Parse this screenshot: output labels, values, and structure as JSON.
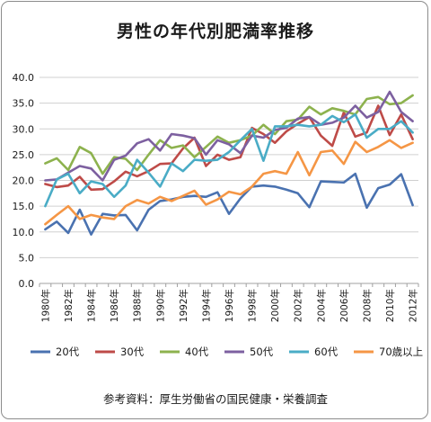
{
  "chart_data": {
    "type": "line",
    "title": "男性の年代別肥満率推移",
    "source_note": "参考資料：厚生労働省の国民健康・栄養調査",
    "xlabel": "",
    "ylabel": "",
    "ylim": [
      0,
      40
    ],
    "y_ticks": [
      "0.0",
      "5.0",
      "10.0",
      "15.0",
      "20.0",
      "25.0",
      "30.0",
      "35.0",
      "40.0"
    ],
    "x": [
      1980,
      1981,
      1982,
      1983,
      1984,
      1985,
      1986,
      1987,
      1988,
      1989,
      1990,
      1991,
      1992,
      1993,
      1994,
      1995,
      1996,
      1997,
      1998,
      1999,
      2000,
      2001,
      2002,
      2003,
      2004,
      2005,
      2006,
      2007,
      2008,
      2009,
      2010,
      2011,
      2012
    ],
    "x_tick_labels": [
      "1980年",
      "1982年",
      "1984年",
      "1986年",
      "1988年",
      "1990年",
      "1992年",
      "1994年",
      "1996年",
      "1998年",
      "2000年",
      "2002年",
      "2004年",
      "2006年",
      "2008年",
      "2010年",
      "2012年"
    ],
    "grid": true,
    "legend_position": "bottom",
    "series": [
      {
        "name": "20代",
        "color": "#4a72b0",
        "values": [
          10.5,
          12.0,
          9.8,
          14.3,
          9.5,
          13.5,
          13.2,
          13.3,
          10.3,
          14.3,
          16.0,
          16.3,
          16.8,
          17.0,
          16.8,
          17.7,
          13.5,
          16.5,
          18.8,
          19.0,
          18.8,
          18.2,
          17.5,
          14.8,
          19.8,
          19.7,
          19.6,
          21.3,
          14.7,
          18.5,
          19.2,
          21.2,
          15.2
        ]
      },
      {
        "name": "30代",
        "color": "#be4b48",
        "values": [
          19.3,
          18.7,
          19.0,
          20.7,
          18.2,
          18.3,
          19.8,
          21.7,
          20.8,
          21.8,
          23.2,
          23.3,
          26.2,
          28.3,
          22.8,
          25.0,
          24.0,
          24.5,
          30.2,
          29.0,
          27.3,
          29.5,
          31.0,
          32.3,
          28.7,
          26.7,
          33.2,
          28.5,
          29.3,
          34.5,
          28.8,
          32.8,
          28.0
        ]
      },
      {
        "name": "40代",
        "color": "#8db24e",
        "values": [
          23.3,
          24.3,
          22.0,
          26.5,
          25.3,
          21.3,
          24.5,
          24.2,
          22.0,
          25.0,
          27.8,
          26.3,
          26.8,
          24.5,
          26.5,
          28.5,
          27.3,
          27.8,
          28.7,
          30.8,
          29.0,
          31.5,
          31.8,
          34.3,
          32.8,
          34.0,
          33.5,
          32.8,
          35.8,
          36.2,
          34.8,
          35.0,
          36.5
        ]
      },
      {
        "name": "50代",
        "color": "#7d60a0",
        "values": [
          20.0,
          20.2,
          21.5,
          22.8,
          22.3,
          20.0,
          24.0,
          24.8,
          27.2,
          28.0,
          25.8,
          29.0,
          28.7,
          28.2,
          25.0,
          27.8,
          27.0,
          25.3,
          28.7,
          28.3,
          29.8,
          30.2,
          32.0,
          32.3,
          30.8,
          31.2,
          32.2,
          34.5,
          32.2,
          33.3,
          37.2,
          33.3,
          31.5
        ]
      },
      {
        "name": "60代",
        "color": "#4aacc6",
        "values": [
          15.0,
          20.2,
          21.3,
          17.5,
          19.8,
          19.3,
          16.8,
          19.0,
          24.0,
          21.5,
          18.8,
          23.3,
          21.8,
          24.0,
          23.8,
          24.0,
          25.5,
          27.8,
          30.0,
          23.8,
          30.5,
          30.5,
          30.8,
          30.5,
          30.8,
          32.5,
          31.3,
          32.8,
          28.3,
          30.0,
          30.0,
          31.5,
          29.3
        ]
      },
      {
        "name": "70歳以上",
        "color": "#f59645",
        "values": [
          11.5,
          13.3,
          15.0,
          12.5,
          13.3,
          12.8,
          12.5,
          15.0,
          16.2,
          15.5,
          16.8,
          16.0,
          17.0,
          18.0,
          15.3,
          16.3,
          17.8,
          17.3,
          18.8,
          21.3,
          21.8,
          21.3,
          25.5,
          21.0,
          25.5,
          25.8,
          23.2,
          27.5,
          25.5,
          26.5,
          27.8,
          26.3,
          27.3
        ]
      }
    ]
  }
}
